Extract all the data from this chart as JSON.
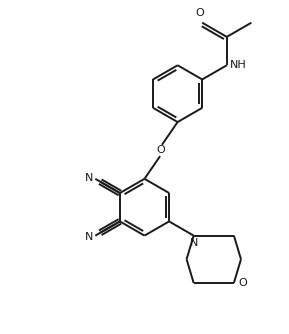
{
  "background_color": "#ffffff",
  "line_color": "#1a1a1a",
  "line_width": 1.4,
  "figsize": [
    2.89,
    3.34
  ],
  "dpi": 100,
  "xlim": [
    -2.8,
    3.0
  ],
  "ylim": [
    -3.2,
    3.8
  ]
}
